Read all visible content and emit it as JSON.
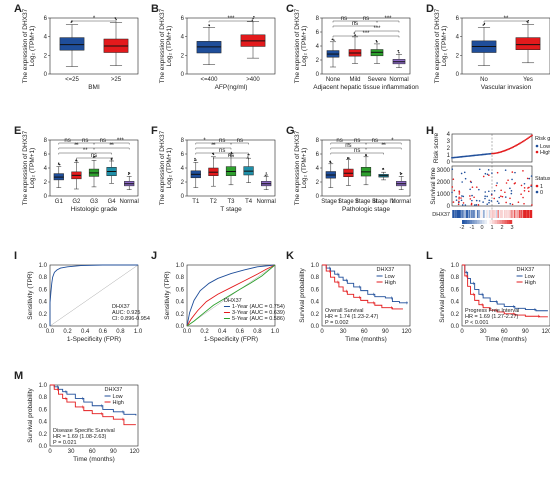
{
  "colors": {
    "low": "#1f4e9a",
    "high": "#e31a1c",
    "severe": "#2ca02c",
    "normal": "#8e6ac8",
    "white": "#ffffff",
    "grid": "#cccccc"
  },
  "box_ylabel": [
    "The expression of DHX37",
    "Log₂ (TPM+1)"
  ],
  "chart_data": [
    {
      "panel": "A",
      "type": "box",
      "title": "",
      "xlabel": "BMI",
      "ylabel": "The expression of DHX37 Log₂ (TPM+1)",
      "ylim": [
        0,
        6
      ],
      "yticks": [
        0,
        2,
        4,
        6
      ],
      "categories": [
        "<=25",
        ">25"
      ],
      "boxes": [
        {
          "min": 0.8,
          "q1": 2.55,
          "median": 3.15,
          "q3": 3.9,
          "max": 5.3,
          "color": "#1f4e9a"
        },
        {
          "min": 0.9,
          "q1": 2.3,
          "median": 3.0,
          "q3": 3.75,
          "max": 5.5,
          "color": "#e31a1c"
        }
      ],
      "sig": [
        {
          "a": 0,
          "b": 1,
          "label": "*"
        }
      ]
    },
    {
      "panel": "B",
      "type": "box",
      "title": "",
      "xlabel": "AFP(ng/ml)",
      "ylabel": "The expression of DHX37 Log₂ (TPM+1)",
      "ylim": [
        0,
        6
      ],
      "yticks": [
        0,
        2,
        4,
        6
      ],
      "categories": [
        "<=400",
        ">400"
      ],
      "boxes": [
        {
          "min": 1.0,
          "q1": 2.25,
          "median": 2.9,
          "q3": 3.5,
          "max": 5.0,
          "color": "#1f4e9a"
        },
        {
          "min": 1.7,
          "q1": 2.95,
          "median": 3.55,
          "q3": 4.2,
          "max": 5.6,
          "color": "#e31a1c"
        }
      ],
      "sig": [
        {
          "a": 0,
          "b": 1,
          "label": "***"
        }
      ]
    },
    {
      "panel": "C",
      "type": "box",
      "title": "",
      "xlabel": "Adjacent hepatic tissue inflammation",
      "ylabel": "The expression of DHX37 Log₂ (TPM+1)",
      "ylim": [
        0,
        8
      ],
      "yticks": [
        0,
        2,
        4,
        6,
        8
      ],
      "categories": [
        "None",
        "Mild",
        "Severe",
        "Normal"
      ],
      "boxes": [
        {
          "min": 1.0,
          "q1": 2.4,
          "median": 2.85,
          "q3": 3.35,
          "max": 4.6,
          "color": "#1f4e9a"
        },
        {
          "min": 1.5,
          "q1": 2.55,
          "median": 3.0,
          "q3": 3.5,
          "max": 5.3,
          "color": "#e31a1c"
        },
        {
          "min": 1.5,
          "q1": 2.6,
          "median": 3.1,
          "q3": 3.5,
          "max": 4.3,
          "color": "#2ca02c"
        },
        {
          "min": 0.9,
          "q1": 1.45,
          "median": 1.75,
          "q3": 2.1,
          "max": 2.8,
          "color": "#8e6ac8"
        }
      ],
      "sig": [
        {
          "a": 0,
          "b": 1,
          "label": "ns"
        },
        {
          "a": 1,
          "b": 2,
          "label": "ns"
        },
        {
          "a": 0,
          "b": 2,
          "label": "ns"
        },
        {
          "a": 2,
          "b": 3,
          "label": "***"
        },
        {
          "a": 1,
          "b": 3,
          "label": "***"
        },
        {
          "a": 0,
          "b": 3,
          "label": "***"
        }
      ]
    },
    {
      "panel": "D",
      "type": "box",
      "title": "",
      "xlabel": "Vascular invasion",
      "ylabel": "The expression of DHX37 Log₂ (TPM+1)",
      "ylim": [
        0,
        6
      ],
      "yticks": [
        0,
        2,
        4,
        6
      ],
      "categories": [
        "No",
        "Yes"
      ],
      "boxes": [
        {
          "min": 0.9,
          "q1": 2.3,
          "median": 2.95,
          "q3": 3.55,
          "max": 5.0,
          "color": "#1f4e9a"
        },
        {
          "min": 1.2,
          "q1": 2.6,
          "median": 3.15,
          "q3": 3.9,
          "max": 5.3,
          "color": "#e31a1c"
        }
      ],
      "sig": [
        {
          "a": 0,
          "b": 1,
          "label": "**"
        }
      ]
    },
    {
      "panel": "E",
      "type": "box",
      "title": "",
      "xlabel": "Histologic grade",
      "ylabel": "The expression of DHX37 Log₂ (TPM+1)",
      "ylim": [
        0,
        8
      ],
      "yticks": [
        0,
        2,
        4,
        6,
        8
      ],
      "categories": [
        "G1",
        "G2",
        "G3",
        "G4",
        "Normal"
      ],
      "boxes": [
        {
          "min": 1.2,
          "q1": 2.3,
          "median": 2.7,
          "q3": 3.2,
          "max": 4.2,
          "color": "#1f4e9a"
        },
        {
          "min": 1.0,
          "q1": 2.45,
          "median": 2.95,
          "q3": 3.45,
          "max": 4.8,
          "color": "#e31a1c"
        },
        {
          "min": 1.3,
          "q1": 2.8,
          "median": 3.3,
          "q3": 3.85,
          "max": 5.1,
          "color": "#2ca02c"
        },
        {
          "min": 1.8,
          "q1": 2.9,
          "median": 3.5,
          "q3": 4.1,
          "max": 5.0,
          "color": "#1f8fa8"
        },
        {
          "min": 0.9,
          "q1": 1.45,
          "median": 1.75,
          "q3": 2.1,
          "max": 2.8,
          "color": "#8e6ac8"
        }
      ],
      "sig": [
        {
          "a": 0,
          "b": 1,
          "label": "ns"
        },
        {
          "a": 0,
          "b": 2,
          "label": "**"
        },
        {
          "a": 0,
          "b": 3,
          "label": "**"
        },
        {
          "a": 1,
          "b": 2,
          "label": "ns"
        },
        {
          "a": 2,
          "b": 3,
          "label": "ns"
        },
        {
          "a": 1,
          "b": 3,
          "label": "ns"
        },
        {
          "a": 3,
          "b": 4,
          "label": "***"
        },
        {
          "a": 2,
          "b": 4,
          "label": "**"
        }
      ]
    },
    {
      "panel": "F",
      "type": "box",
      "title": "",
      "xlabel": "T stage",
      "ylabel": "The expression of DHX37 Log₂ (TPM+1)",
      "ylim": [
        0,
        8
      ],
      "yticks": [
        0,
        2,
        4,
        6,
        8
      ],
      "categories": [
        "T1",
        "T2",
        "T3",
        "T4",
        "Normal"
      ],
      "boxes": [
        {
          "min": 1.2,
          "q1": 2.6,
          "median": 3.1,
          "q3": 3.6,
          "max": 4.8,
          "color": "#1f4e9a"
        },
        {
          "min": 1.4,
          "q1": 2.9,
          "median": 3.4,
          "q3": 4.0,
          "max": 5.6,
          "color": "#e31a1c"
        },
        {
          "min": 1.6,
          "q1": 2.9,
          "median": 3.5,
          "q3": 4.2,
          "max": 5.8,
          "color": "#2ca02c"
        },
        {
          "min": 1.9,
          "q1": 3.0,
          "median": 3.55,
          "q3": 4.2,
          "max": 5.4,
          "color": "#1f8fa8"
        },
        {
          "min": 0.9,
          "q1": 1.45,
          "median": 1.75,
          "q3": 2.1,
          "max": 2.8,
          "color": "#8e6ac8"
        }
      ],
      "sig": [
        {
          "a": 0,
          "b": 1,
          "label": "*"
        },
        {
          "a": 0,
          "b": 2,
          "label": "**"
        },
        {
          "a": 0,
          "b": 3,
          "label": "ns"
        },
        {
          "a": 1,
          "b": 2,
          "label": "ns"
        },
        {
          "a": 2,
          "b": 3,
          "label": "ns"
        },
        {
          "a": 1,
          "b": 3,
          "label": "ns"
        }
      ]
    },
    {
      "panel": "G",
      "type": "box",
      "title": "",
      "xlabel": "Pathologic stage",
      "ylabel": "The expression of DHX37 Log₂ (TPM+1)",
      "ylim": [
        0,
        8
      ],
      "yticks": [
        0,
        2,
        4,
        6,
        8
      ],
      "categories": [
        "Stage I",
        "Stage II",
        "Stage III",
        "Stage IV",
        "Normal"
      ],
      "boxes": [
        {
          "min": 1.2,
          "q1": 2.55,
          "median": 3.0,
          "q3": 3.5,
          "max": 4.6,
          "color": "#1f4e9a"
        },
        {
          "min": 1.5,
          "q1": 2.75,
          "median": 3.25,
          "q3": 3.85,
          "max": 5.2,
          "color": "#e31a1c"
        },
        {
          "min": 1.6,
          "q1": 2.85,
          "median": 3.45,
          "q3": 4.1,
          "max": 5.6,
          "color": "#2ca02c"
        },
        {
          "min": 2.3,
          "q1": 2.7,
          "median": 2.9,
          "q3": 3.1,
          "max": 3.4,
          "color": "#1f8fa8"
        },
        {
          "min": 0.9,
          "q1": 1.45,
          "median": 1.75,
          "q3": 2.1,
          "max": 2.8,
          "color": "#8e6ac8"
        }
      ],
      "sig": [
        {
          "a": 0,
          "b": 1,
          "label": "ns"
        },
        {
          "a": 0,
          "b": 2,
          "label": "ns"
        },
        {
          "a": 0,
          "b": 3,
          "label": "ns"
        },
        {
          "a": 1,
          "b": 2,
          "label": "ns"
        },
        {
          "a": 2,
          "b": 3,
          "label": "ns"
        },
        {
          "a": 3,
          "b": 4,
          "label": "*"
        },
        {
          "a": 2,
          "b": 4,
          "label": "**"
        }
      ]
    },
    {
      "panel": "H",
      "type": "risk",
      "ylabel_top": "Risk score",
      "ylabel_mid": "Survival time",
      "yticks_top": [
        "0",
        "1",
        "2",
        "3",
        "4"
      ],
      "yticks_mid": [
        "0",
        "1000",
        "2000",
        "3000"
      ],
      "legend_top": {
        "title": "Risk group",
        "items": [
          "Low",
          "High"
        ]
      },
      "legend_mid": {
        "title": "Status",
        "items": [
          "1",
          "0"
        ]
      },
      "heat_label": "DHX37",
      "scale_ticks": [
        "-2",
        "-1",
        "0",
        "1",
        "2",
        "3"
      ]
    },
    {
      "panel": "I",
      "type": "roc",
      "xlabel": "1-Specificity (FPR)",
      "ylabel": "Sensitivity (TPR)",
      "ticks": [
        "0.0",
        "0.2",
        "0.4",
        "0.6",
        "0.8",
        "1.0"
      ],
      "x": [
        0,
        0.0,
        0.01,
        0.02,
        0.03,
        0.05,
        0.08,
        0.12,
        0.2,
        0.35,
        0.6,
        1.0
      ],
      "y": [
        0,
        0.38,
        0.55,
        0.7,
        0.8,
        0.88,
        0.92,
        0.95,
        0.97,
        0.99,
        1.0,
        1.0
      ],
      "annotations": [
        "DHX37",
        "AUC: 0.925",
        "CI: 0.896-0.954"
      ]
    },
    {
      "panel": "J",
      "type": "roc",
      "xlabel": "1-Specificity (FPR)",
      "ylabel": "Sensitivity (TPR)",
      "ticks": [
        "0.0",
        "0.2",
        "0.4",
        "0.6",
        "0.8",
        "1.0"
      ],
      "series": [
        {
          "name": "1-Year (AUC = 0.754)",
          "color": "#1f4e9a",
          "x": [
            0,
            0.03,
            0.08,
            0.15,
            0.25,
            0.35,
            0.5,
            0.65,
            0.8,
            1.0
          ],
          "y": [
            0,
            0.22,
            0.42,
            0.58,
            0.7,
            0.78,
            0.86,
            0.92,
            0.97,
            1.0
          ]
        },
        {
          "name": "3-Year (AUC = 0.639)",
          "color": "#e31a1c",
          "x": [
            0,
            0.05,
            0.12,
            0.22,
            0.35,
            0.5,
            0.65,
            0.8,
            0.9,
            1.0
          ],
          "y": [
            0,
            0.12,
            0.25,
            0.4,
            0.52,
            0.63,
            0.74,
            0.85,
            0.93,
            1.0
          ]
        },
        {
          "name": "5-Year (AUC = 0.586)",
          "color": "#2ca02c",
          "x": [
            0,
            0.08,
            0.18,
            0.3,
            0.45,
            0.6,
            0.72,
            0.85,
            0.95,
            1.0
          ],
          "y": [
            0,
            0.08,
            0.2,
            0.34,
            0.47,
            0.6,
            0.7,
            0.82,
            0.94,
            1.0
          ]
        }
      ],
      "legend_title": "DHX37"
    },
    {
      "panel": "K",
      "type": "km",
      "xlabel": "Time (months)",
      "ylabel": "Survival probability",
      "xticks": [
        "0",
        "30",
        "60",
        "90",
        "120"
      ],
      "yticks": [
        "0.0",
        "0.2",
        "0.4",
        "0.6",
        "0.8",
        "1.0"
      ],
      "legend_title": "DHX37",
      "legend": [
        "Low",
        "High"
      ],
      "series": [
        {
          "name": "Low",
          "color": "#1f4e9a",
          "t": [
            0,
            6,
            12,
            18,
            24,
            30,
            36,
            45,
            55,
            65,
            75,
            90,
            100,
            110,
            122
          ],
          "s": [
            1,
            0.95,
            0.9,
            0.85,
            0.8,
            0.75,
            0.7,
            0.64,
            0.58,
            0.52,
            0.48,
            0.46,
            0.4,
            0.38,
            0.38
          ]
        },
        {
          "name": "High",
          "color": "#e31a1c",
          "t": [
            0,
            6,
            12,
            18,
            24,
            30,
            36,
            45,
            55,
            65,
            75,
            85,
            100,
            115
          ],
          "s": [
            1,
            0.9,
            0.8,
            0.72,
            0.64,
            0.57,
            0.52,
            0.47,
            0.42,
            0.38,
            0.34,
            0.3,
            0.28,
            0.28
          ]
        }
      ],
      "annotations": [
        "Overall Survival",
        "HR = 1.74 (1.23-2.47)",
        "P = 0.002"
      ]
    },
    {
      "panel": "L",
      "type": "km",
      "xlabel": "Time (months)",
      "ylabel": "Survival probability",
      "xticks": [
        "0",
        "30",
        "60",
        "90",
        "120"
      ],
      "yticks": [
        "0.0",
        "0.2",
        "0.4",
        "0.6",
        "0.8",
        "1.0"
      ],
      "legend_title": "DHX37",
      "legend": [
        "Low",
        "High"
      ],
      "series": [
        {
          "name": "Low",
          "color": "#1f4e9a",
          "t": [
            0,
            4,
            8,
            12,
            18,
            24,
            30,
            40,
            50,
            60,
            75,
            90,
            105,
            122
          ],
          "s": [
            1,
            0.88,
            0.78,
            0.7,
            0.6,
            0.52,
            0.46,
            0.4,
            0.36,
            0.32,
            0.29,
            0.27,
            0.25,
            0.25
          ]
        },
        {
          "name": "High",
          "color": "#e31a1c",
          "t": [
            0,
            4,
            8,
            12,
            18,
            24,
            30,
            40,
            50,
            60,
            75,
            90,
            110,
            122
          ],
          "s": [
            1,
            0.82,
            0.65,
            0.52,
            0.42,
            0.35,
            0.3,
            0.26,
            0.23,
            0.2,
            0.18,
            0.16,
            0.15,
            0.15
          ]
        }
      ],
      "annotations": [
        "Progress Free Interval",
        "HR = 1.69 (1.27-2.27)",
        "P < 0.001"
      ]
    },
    {
      "panel": "M",
      "type": "km",
      "xlabel": "Time (months)",
      "ylabel": "Survival probability",
      "xticks": [
        "0",
        "30",
        "60",
        "90",
        "120"
      ],
      "yticks": [
        "0.0",
        "0.2",
        "0.4",
        "0.6",
        "0.8",
        "1.0"
      ],
      "legend_title": "DHX37",
      "legend": [
        "Low",
        "High"
      ],
      "series": [
        {
          "name": "Low",
          "color": "#1f4e9a",
          "t": [
            0,
            6,
            12,
            18,
            24,
            36,
            48,
            60,
            75,
            90,
            105,
            122
          ],
          "s": [
            1,
            0.97,
            0.93,
            0.89,
            0.85,
            0.78,
            0.72,
            0.66,
            0.6,
            0.56,
            0.52,
            0.5
          ]
        },
        {
          "name": "High",
          "color": "#e31a1c",
          "t": [
            0,
            6,
            12,
            18,
            24,
            36,
            48,
            60,
            75,
            90,
            105,
            122
          ],
          "s": [
            1,
            0.93,
            0.85,
            0.78,
            0.72,
            0.64,
            0.58,
            0.53,
            0.48,
            0.44,
            0.35,
            0.35
          ]
        }
      ],
      "annotations": [
        "Disease Specific Survival",
        "HR = 1.69 (1.08-2.63)",
        "P = 0.021"
      ]
    }
  ]
}
